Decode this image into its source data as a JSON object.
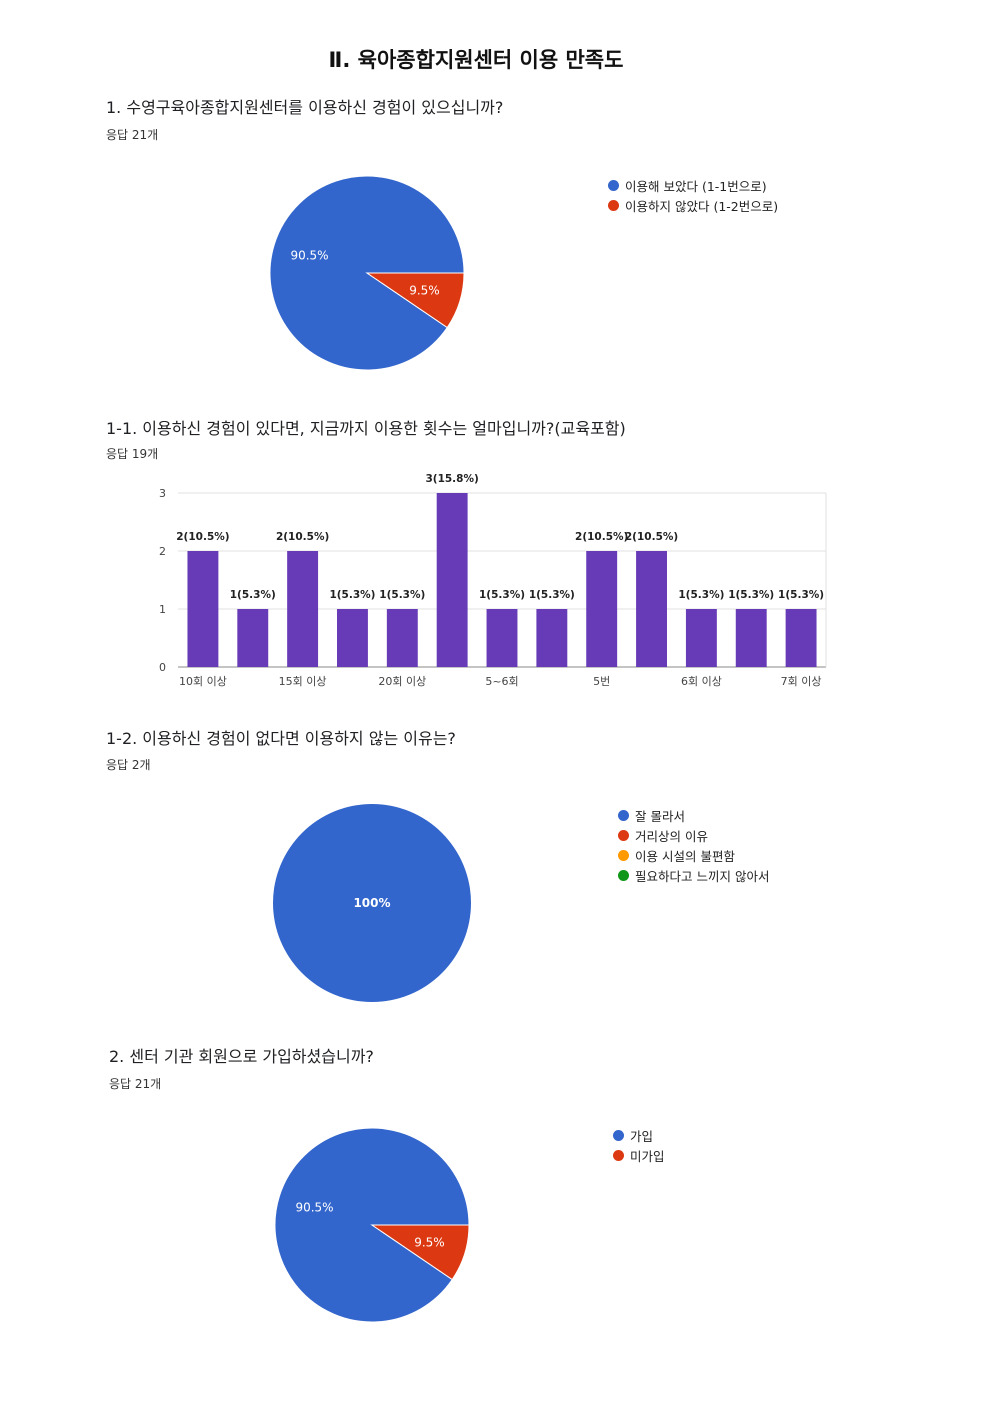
{
  "page": {
    "title": "Ⅱ. 육아종합지원센터 이용 만족도"
  },
  "questions": [
    {
      "title": "1. 수영구육아종합지원센터를 이용하신 경험이 있으십니까?",
      "count": "응답 21개"
    },
    {
      "title": "1-1. 이용하신 경험이 있다면, 지금까지 이용한 횟수는 얼마입니까?(교육포함)",
      "count": "응답 19개"
    },
    {
      "title": "1-2. 이용하신 경험이 없다면 이용하지 않는 이유는?",
      "count": "응답 2개"
    },
    {
      "title": "2. 센터 기관 회원으로 가입하셨습니까?",
      "count": "응답 21개"
    }
  ],
  "chart_data": [
    {
      "type": "pie",
      "legend_position": "right",
      "slices": [
        {
          "label": "이용해 보았다 (1-1번으로)",
          "value": 90.5,
          "display": "90.5%",
          "color": "#3366cc"
        },
        {
          "label": "이용하지 않았다 (1-2번으로)",
          "value": 9.5,
          "display": "9.5%",
          "color": "#dc3912"
        }
      ]
    },
    {
      "type": "bar",
      "color": "#673ab7",
      "ylim": [
        0,
        3
      ],
      "yticks": [
        0,
        1,
        2,
        3
      ],
      "grid": true,
      "values": [
        2,
        1,
        2,
        1,
        1,
        3,
        1,
        1,
        2,
        2,
        1,
        1,
        1
      ],
      "data_labels": [
        "2(10.5%)",
        "1(5.3%)",
        "2(10.5%)",
        "1(5.3%)",
        "1(5.3%)",
        "3(15.8%)",
        "1(5.3%)",
        "1(5.3%)",
        "2(10.5%)",
        "2(10.5%)",
        "1(5.3%)",
        "1(5.3%)",
        "1(5.3%)"
      ],
      "tick_labels": [
        "10회 이상",
        "",
        "15회 이상",
        "",
        "20회 이상",
        "",
        "5~6회",
        "",
        "5번",
        "",
        "6회 이상",
        "",
        "7회 이상"
      ]
    },
    {
      "type": "pie",
      "legend_position": "right",
      "slices": [
        {
          "label": "잘 몰라서",
          "value": 100,
          "display": "100%",
          "color": "#3366cc"
        },
        {
          "label": "거리상의 이유",
          "value": 0,
          "display": "",
          "color": "#dc3912"
        },
        {
          "label": "이용 시설의 불편함",
          "value": 0,
          "display": "",
          "color": "#ff9900"
        },
        {
          "label": "필요하다고 느끼지 않아서",
          "value": 0,
          "display": "",
          "color": "#109618"
        }
      ]
    },
    {
      "type": "pie",
      "legend_position": "right",
      "slices": [
        {
          "label": "가입",
          "value": 90.5,
          "display": "90.5%",
          "color": "#3366cc"
        },
        {
          "label": "미가입",
          "value": 9.5,
          "display": "9.5%",
          "color": "#dc3912"
        }
      ]
    }
  ]
}
